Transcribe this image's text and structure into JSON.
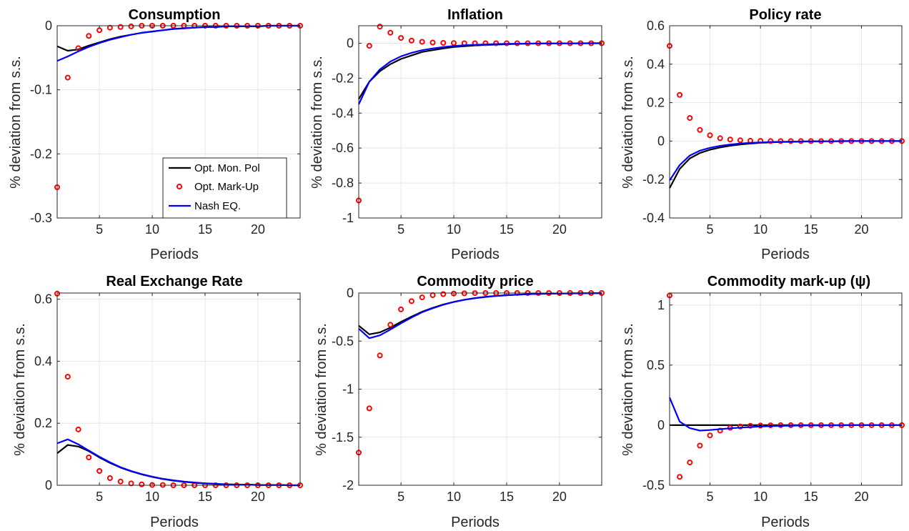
{
  "figure": {
    "legend": {
      "placement": "bottom-right",
      "panel": 0,
      "entries": [
        "Opt. Mon. Pol",
        "Opt. Mark-Up",
        "Nash EQ."
      ]
    },
    "series_styles": [
      {
        "name": "Opt. Mon. Pol",
        "color": "#000000",
        "style": "line"
      },
      {
        "name": "Opt. Mark-Up",
        "color": "#ff0000",
        "style": "markers"
      },
      {
        "name": "Nash EQ.",
        "color": "#0000ff",
        "style": "line"
      }
    ]
  },
  "chart_data": [
    {
      "type": "line",
      "title": "Consumption",
      "xlabel": "Periods",
      "ylabel": "% deviation from s.s.",
      "xlim": [
        1,
        24
      ],
      "ylim": [
        -0.3,
        0
      ],
      "xticks": [
        5,
        10,
        15,
        20
      ],
      "yticks": [
        -0.3,
        -0.2,
        -0.1,
        0
      ],
      "ytick_labels": [
        "-0.3",
        "-0.2",
        "-0.1",
        "0"
      ],
      "grid": true,
      "x": [
        1,
        2,
        3,
        4,
        5,
        6,
        7,
        8,
        9,
        10,
        11,
        12,
        13,
        14,
        15,
        16,
        17,
        18,
        19,
        20,
        21,
        22,
        23,
        24
      ],
      "series": [
        {
          "name": "Opt. Mon. Pol",
          "values": [
            -0.032,
            -0.039,
            -0.037,
            -0.031,
            -0.026,
            -0.021,
            -0.017,
            -0.014,
            -0.011,
            -0.009,
            -0.007,
            -0.005,
            -0.004,
            -0.003,
            -0.002,
            -0.002,
            -0.001,
            -0.001,
            -0.001,
            -0.001,
            0,
            0,
            0,
            0
          ]
        },
        {
          "name": "Opt. Mark-Up",
          "values": [
            -0.252,
            -0.081,
            -0.035,
            -0.016,
            -0.007,
            -0.003,
            -0.002,
            -0.001,
            0,
            0,
            0,
            0,
            0,
            0,
            0,
            0,
            0,
            0,
            0,
            0,
            0,
            0,
            0,
            0
          ]
        },
        {
          "name": "Nash EQ.",
          "values": [
            -0.055,
            -0.048,
            -0.04,
            -0.033,
            -0.027,
            -0.022,
            -0.018,
            -0.014,
            -0.011,
            -0.009,
            -0.007,
            -0.005,
            -0.004,
            -0.003,
            -0.002,
            -0.002,
            -0.001,
            -0.001,
            -0.001,
            -0.001,
            0,
            0,
            0,
            0
          ]
        }
      ]
    },
    {
      "type": "line",
      "title": "Inflation",
      "xlabel": "Periods",
      "ylabel": "% deviation from s.s.",
      "xlim": [
        1,
        24
      ],
      "ylim": [
        -1,
        0.1
      ],
      "xticks": [
        5,
        10,
        15,
        20
      ],
      "yticks": [
        -1,
        -0.8,
        -0.6,
        -0.4,
        -0.2,
        0
      ],
      "ytick_labels": [
        "-1",
        "-0.8",
        "-0.6",
        "-0.4",
        "-0.2",
        "0"
      ],
      "grid": true,
      "x": [
        1,
        2,
        3,
        4,
        5,
        6,
        7,
        8,
        9,
        10,
        11,
        12,
        13,
        14,
        15,
        16,
        17,
        18,
        19,
        20,
        21,
        22,
        23,
        24
      ],
      "series": [
        {
          "name": "Opt. Mon. Pol",
          "values": [
            -0.32,
            -0.22,
            -0.16,
            -0.12,
            -0.09,
            -0.07,
            -0.05,
            -0.04,
            -0.03,
            -0.022,
            -0.017,
            -0.013,
            -0.01,
            -0.008,
            -0.006,
            -0.004,
            -0.003,
            -0.002,
            -0.002,
            -0.001,
            -0.001,
            -0.001,
            0,
            0
          ]
        },
        {
          "name": "Opt. Mark-Up",
          "values": [
            -0.9,
            -0.015,
            0.095,
            0.06,
            0.03,
            0.015,
            0.008,
            0.004,
            0.002,
            0.001,
            0,
            0,
            0,
            0,
            0,
            0,
            0,
            0,
            0,
            0,
            0,
            0,
            0,
            0
          ]
        },
        {
          "name": "Nash EQ.",
          "values": [
            -0.35,
            -0.22,
            -0.15,
            -0.105,
            -0.075,
            -0.055,
            -0.04,
            -0.03,
            -0.022,
            -0.016,
            -0.012,
            -0.009,
            -0.007,
            -0.005,
            -0.004,
            -0.003,
            -0.002,
            -0.002,
            -0.001,
            -0.001,
            -0.001,
            0,
            0,
            0
          ]
        }
      ]
    },
    {
      "type": "line",
      "title": "Policy rate",
      "xlabel": "Periods",
      "ylabel": "% deviation from s.s.",
      "xlim": [
        1,
        24
      ],
      "ylim": [
        -0.4,
        0.6
      ],
      "xticks": [
        5,
        10,
        15,
        20
      ],
      "yticks": [
        -0.4,
        -0.2,
        0,
        0.2,
        0.4,
        0.6
      ],
      "ytick_labels": [
        "-0.4",
        "-0.2",
        "0",
        "0.2",
        "0.4",
        "0.6"
      ],
      "grid": true,
      "x": [
        1,
        2,
        3,
        4,
        5,
        6,
        7,
        8,
        9,
        10,
        11,
        12,
        13,
        14,
        15,
        16,
        17,
        18,
        19,
        20,
        21,
        22,
        23,
        24
      ],
      "series": [
        {
          "name": "Opt. Mon. Pol",
          "values": [
            -0.245,
            -0.145,
            -0.09,
            -0.062,
            -0.045,
            -0.033,
            -0.024,
            -0.018,
            -0.013,
            -0.009,
            -0.007,
            -0.005,
            -0.004,
            -0.003,
            -0.002,
            -0.001,
            -0.001,
            -0.001,
            0,
            0,
            0,
            0,
            0,
            0
          ]
        },
        {
          "name": "Opt. Mark-Up",
          "values": [
            0.495,
            0.24,
            0.12,
            0.058,
            0.03,
            0.015,
            0.008,
            0.004,
            0.002,
            0.001,
            0,
            0,
            0,
            0,
            0,
            0,
            0,
            0,
            0,
            0,
            0,
            0,
            0,
            0
          ]
        },
        {
          "name": "Nash EQ.",
          "values": [
            -0.205,
            -0.125,
            -0.075,
            -0.05,
            -0.035,
            -0.025,
            -0.018,
            -0.013,
            -0.009,
            -0.007,
            -0.005,
            -0.004,
            -0.003,
            -0.002,
            -0.001,
            -0.001,
            -0.001,
            0,
            0,
            0,
            0,
            0,
            0,
            0
          ]
        }
      ]
    },
    {
      "type": "line",
      "title": "Real Exchange Rate",
      "xlabel": "Periods",
      "ylabel": "% deviation from s.s.",
      "xlim": [
        1,
        24
      ],
      "ylim": [
        0,
        0.62
      ],
      "xticks": [
        5,
        10,
        15,
        20
      ],
      "yticks": [
        0,
        0.2,
        0.4,
        0.6
      ],
      "ytick_labels": [
        "0",
        "0.2",
        "0.4",
        "0.6"
      ],
      "grid": true,
      "x": [
        1,
        2,
        3,
        4,
        5,
        6,
        7,
        8,
        9,
        10,
        11,
        12,
        13,
        14,
        15,
        16,
        17,
        18,
        19,
        20,
        21,
        22,
        23,
        24
      ],
      "series": [
        {
          "name": "Opt. Mon. Pol",
          "values": [
            0.103,
            0.13,
            0.125,
            0.11,
            0.09,
            0.072,
            0.057,
            0.045,
            0.035,
            0.027,
            0.02,
            0.015,
            0.011,
            0.008,
            0.006,
            0.004,
            0.003,
            0.002,
            0.002,
            0.001,
            0.001,
            0.001,
            0,
            0
          ]
        },
        {
          "name": "Opt. Mark-Up",
          "values": [
            0.618,
            0.35,
            0.18,
            0.09,
            0.046,
            0.023,
            0.012,
            0.006,
            0.003,
            0.001,
            0.001,
            0,
            0,
            0,
            0,
            0,
            0,
            0,
            0,
            0,
            0,
            0,
            0,
            0
          ]
        },
        {
          "name": "Nash EQ.",
          "values": [
            0.135,
            0.148,
            0.132,
            0.112,
            0.092,
            0.074,
            0.058,
            0.046,
            0.036,
            0.028,
            0.021,
            0.016,
            0.012,
            0.009,
            0.006,
            0.005,
            0.003,
            0.002,
            0.002,
            0.001,
            0.001,
            0.001,
            0,
            0
          ]
        }
      ]
    },
    {
      "type": "line",
      "title": "Commodity price",
      "xlabel": "Periods",
      "ylabel": "% deviation from s.s.",
      "xlim": [
        1,
        24
      ],
      "ylim": [
        -2,
        0
      ],
      "xticks": [
        5,
        10,
        15,
        20
      ],
      "yticks": [
        -2,
        -1.5,
        -1,
        -0.5,
        0
      ],
      "ytick_labels": [
        "-2",
        "-1.5",
        "-1",
        "-0.5",
        "0"
      ],
      "grid": true,
      "x": [
        1,
        2,
        3,
        4,
        5,
        6,
        7,
        8,
        9,
        10,
        11,
        12,
        13,
        14,
        15,
        16,
        17,
        18,
        19,
        20,
        21,
        22,
        23,
        24
      ],
      "series": [
        {
          "name": "Opt. Mon. Pol",
          "values": [
            -0.34,
            -0.43,
            -0.41,
            -0.36,
            -0.3,
            -0.245,
            -0.195,
            -0.155,
            -0.12,
            -0.092,
            -0.07,
            -0.053,
            -0.04,
            -0.03,
            -0.022,
            -0.017,
            -0.012,
            -0.009,
            -0.007,
            -0.005,
            -0.004,
            -0.003,
            -0.002,
            -0.001
          ]
        },
        {
          "name": "Opt. Mark-Up",
          "values": [
            -1.66,
            -1.2,
            -0.65,
            -0.33,
            -0.17,
            -0.085,
            -0.045,
            -0.022,
            -0.011,
            -0.005,
            -0.003,
            -0.001,
            0,
            0,
            0,
            0,
            0,
            0,
            0,
            0,
            0,
            0,
            0,
            0
          ]
        },
        {
          "name": "Nash EQ.",
          "values": [
            -0.37,
            -0.47,
            -0.44,
            -0.38,
            -0.315,
            -0.255,
            -0.2,
            -0.158,
            -0.122,
            -0.094,
            -0.071,
            -0.054,
            -0.041,
            -0.031,
            -0.023,
            -0.017,
            -0.013,
            -0.009,
            -0.007,
            -0.005,
            -0.004,
            -0.003,
            -0.002,
            -0.001
          ]
        }
      ]
    },
    {
      "type": "line",
      "title": "Commodity mark-up (ψ)",
      "xlabel": "Periods",
      "ylabel": "% deviation from s.s.",
      "xlim": [
        1,
        24
      ],
      "ylim": [
        -0.5,
        1.1
      ],
      "xticks": [
        5,
        10,
        15,
        20
      ],
      "yticks": [
        -0.5,
        0,
        0.5,
        1
      ],
      "ytick_labels": [
        "-0.5",
        "0",
        "0.5",
        "1"
      ],
      "grid": true,
      "x": [
        1,
        2,
        3,
        4,
        5,
        6,
        7,
        8,
        9,
        10,
        11,
        12,
        13,
        14,
        15,
        16,
        17,
        18,
        19,
        20,
        21,
        22,
        23,
        24
      ],
      "series": [
        {
          "name": "Opt. Mon. Pol",
          "values": [
            0,
            0,
            0,
            0,
            0,
            0,
            0,
            0,
            0,
            0,
            0,
            0,
            0,
            0,
            0,
            0,
            0,
            0,
            0,
            0,
            0,
            0,
            0,
            0
          ]
        },
        {
          "name": "Opt. Mark-Up",
          "values": [
            1.08,
            -0.43,
            -0.31,
            -0.17,
            -0.085,
            -0.045,
            -0.022,
            -0.011,
            -0.005,
            -0.003,
            -0.001,
            0,
            0,
            0,
            0,
            0,
            0,
            0,
            0,
            0,
            0,
            0,
            0,
            0
          ]
        },
        {
          "name": "Nash EQ.",
          "values": [
            0.23,
            0.03,
            -0.025,
            -0.045,
            -0.04,
            -0.033,
            -0.026,
            -0.02,
            -0.015,
            -0.011,
            -0.008,
            -0.006,
            -0.004,
            -0.003,
            -0.002,
            -0.002,
            -0.001,
            -0.001,
            0,
            0,
            0,
            0,
            0,
            0
          ]
        }
      ]
    }
  ]
}
